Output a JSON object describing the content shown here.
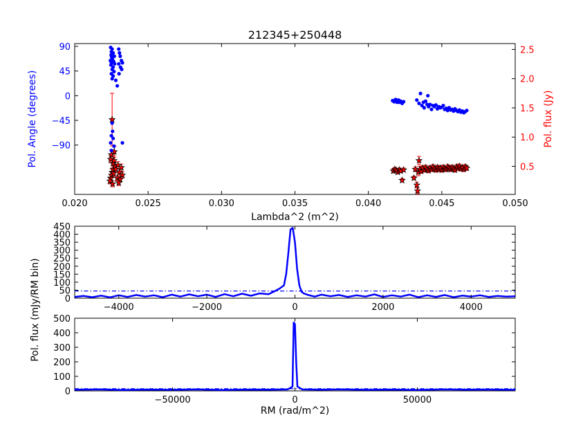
{
  "colors": {
    "angle": "#0000ff",
    "flux": "#ff0000",
    "marker_edge": "#000000",
    "rm_line": "#0000ff"
  },
  "chart_data": [
    {
      "type": "scatter",
      "title": "212345+250448",
      "xlabel": "Lambda^2 (m^2)",
      "ylabel_left": "Pol. Angle (degrees)",
      "ylabel_right": "Pol. flux (Jy)",
      "xlim": [
        0.02,
        0.05
      ],
      "ylim_left": [
        -180,
        95
      ],
      "ylim_right": [
        0.02,
        2.6
      ],
      "xticks": [
        "0.020",
        "0.025",
        "0.030",
        "0.035",
        "0.040",
        "0.045",
        "0.050"
      ],
      "xtick_values": [
        0.02,
        0.025,
        0.03,
        0.035,
        0.04,
        0.045,
        0.05
      ],
      "yticks_left": [
        "90",
        "45",
        "0",
        "−45",
        "−90"
      ],
      "ytick_values_left": [
        90,
        45,
        0,
        -45,
        -90
      ],
      "yticks_right": [
        "0.5",
        "1.0",
        "1.5",
        "2.0",
        "2.5"
      ],
      "ytick_values_right": [
        0.5,
        1.0,
        1.5,
        2.0,
        2.5
      ],
      "series": [
        {
          "points": [
            [
              0.02245,
              88
            ],
            [
              0.02255,
              85
            ],
            [
              0.0225,
              80
            ],
            [
              0.02262,
              78
            ],
            [
              0.02248,
              74
            ],
            [
              0.0227,
              72
            ],
            [
              0.02252,
              70
            ],
            [
              0.02258,
              66
            ],
            [
              0.02243,
              64
            ],
            [
              0.02266,
              62
            ],
            [
              0.0225,
              60
            ],
            [
              0.02272,
              58
            ],
            [
              0.02247,
              56
            ],
            [
              0.02262,
              52
            ],
            [
              0.02255,
              48
            ],
            [
              0.02268,
              44
            ],
            [
              0.0225,
              40
            ],
            [
              0.02262,
              36
            ],
            [
              0.02255,
              31
            ],
            [
              0.0228,
              28
            ],
            [
              0.0229,
              18
            ],
            [
              0.023,
              85
            ],
            [
              0.02305,
              78
            ],
            [
              0.0231,
              72
            ],
            [
              0.02318,
              64
            ],
            [
              0.02325,
              60
            ],
            [
              0.023,
              58
            ],
            [
              0.02312,
              52
            ],
            [
              0.0232,
              48
            ],
            [
              0.02302,
              40
            ],
            [
              0.02255,
              -50
            ],
            [
              0.02258,
              -65
            ],
            [
              0.0225,
              -73
            ],
            [
              0.02262,
              -78
            ],
            [
              0.02245,
              -86
            ],
            [
              0.02268,
              -92
            ],
            [
              0.0225,
              -100
            ],
            [
              0.02325,
              -86
            ],
            [
              0.04165,
              -9
            ],
            [
              0.04175,
              -11
            ],
            [
              0.04185,
              -7
            ],
            [
              0.04195,
              -12
            ],
            [
              0.04205,
              -8
            ],
            [
              0.0421,
              -12
            ],
            [
              0.0422,
              -10
            ],
            [
              0.0423,
              -14
            ],
            [
              0.0424,
              -11
            ],
            [
              0.0433,
              -8
            ],
            [
              0.04345,
              -14
            ],
            [
              0.04355,
              4
            ],
            [
              0.04365,
              -18
            ],
            [
              0.04375,
              -12
            ],
            [
              0.0438,
              -22
            ],
            [
              0.0439,
              -10
            ],
            [
              0.044,
              -16
            ],
            [
              0.04405,
              0
            ],
            [
              0.0441,
              -20
            ],
            [
              0.0442,
              -16
            ],
            [
              0.0443,
              -25
            ],
            [
              0.0444,
              -18
            ],
            [
              0.0445,
              -20
            ],
            [
              0.0446,
              -17
            ],
            [
              0.0447,
              -24
            ],
            [
              0.0448,
              -20
            ],
            [
              0.0449,
              -22
            ],
            [
              0.045,
              -21
            ],
            [
              0.0451,
              -18
            ],
            [
              0.0452,
              -25
            ],
            [
              0.0453,
              -23
            ],
            [
              0.0454,
              -27
            ],
            [
              0.0455,
              -22
            ],
            [
              0.0456,
              -26
            ],
            [
              0.0457,
              -25
            ],
            [
              0.0458,
              -28
            ],
            [
              0.0459,
              -24
            ],
            [
              0.046,
              -27
            ],
            [
              0.0461,
              -29
            ],
            [
              0.0462,
              -26
            ],
            [
              0.0463,
              -30
            ],
            [
              0.0464,
              -28
            ],
            [
              0.0465,
              -31
            ],
            [
              0.0466,
              -29
            ],
            [
              0.0467,
              -27
            ]
          ]
        },
        {
          "points": [
            [
              0.02255,
              0.4,
              0.05
            ],
            [
              0.0226,
              0.55,
              0.07
            ],
            [
              0.02245,
              0.3,
              0.05
            ],
            [
              0.0225,
              0.7,
              0.08
            ],
            [
              0.02262,
              0.45,
              0.06
            ],
            [
              0.0224,
              0.25,
              0.05
            ],
            [
              0.02268,
              0.6,
              0.08
            ],
            [
              0.02252,
              0.35,
              0.05
            ],
            [
              0.02275,
              0.5,
              0.07
            ],
            [
              0.02258,
              0.2,
              0.05
            ],
            [
              0.02245,
              0.62,
              0.06
            ],
            [
              0.02265,
              0.38,
              0.05
            ],
            [
              0.0228,
              0.45,
              0.06
            ],
            [
              0.0229,
              0.3,
              0.05
            ],
            [
              0.02295,
              0.52,
              0.06
            ],
            [
              0.02305,
              0.4,
              0.05
            ],
            [
              0.0231,
              0.28,
              0.05
            ],
            [
              0.02318,
              0.48,
              0.06
            ],
            [
              0.02325,
              0.35,
              0.05
            ],
            [
              0.023,
              0.22,
              0.05
            ],
            [
              0.0227,
              0.75,
              0.1
            ],
            [
              0.02255,
              1.3,
              0.45
            ],
            [
              0.0417,
              0.42,
              0.03
            ],
            [
              0.0418,
              0.45,
              0.03
            ],
            [
              0.0419,
              0.43,
              0.03
            ],
            [
              0.042,
              0.4,
              0.03
            ],
            [
              0.0421,
              0.44,
              0.03
            ],
            [
              0.0422,
              0.42,
              0.03
            ],
            [
              0.0423,
              0.26,
              0.03
            ],
            [
              0.0424,
              0.44,
              0.03
            ],
            [
              0.0431,
              0.3,
              0.03
            ],
            [
              0.0432,
              0.45,
              0.04
            ],
            [
              0.0433,
              0.18,
              0.05
            ],
            [
              0.04335,
              0.08,
              0.05
            ],
            [
              0.0434,
              0.4,
              0.06
            ],
            [
              0.04345,
              0.6,
              0.07
            ],
            [
              0.0435,
              0.45,
              0.05
            ],
            [
              0.0436,
              0.42,
              0.04
            ],
            [
              0.0437,
              0.47,
              0.04
            ],
            [
              0.0438,
              0.44,
              0.04
            ],
            [
              0.0439,
              0.48,
              0.04
            ],
            [
              0.044,
              0.45,
              0.04
            ],
            [
              0.0441,
              0.43,
              0.04
            ],
            [
              0.0442,
              0.47,
              0.04
            ],
            [
              0.0443,
              0.45,
              0.04
            ],
            [
              0.0444,
              0.49,
              0.04
            ],
            [
              0.0445,
              0.46,
              0.04
            ],
            [
              0.0446,
              0.44,
              0.04
            ],
            [
              0.0447,
              0.48,
              0.04
            ],
            [
              0.0448,
              0.45,
              0.04
            ],
            [
              0.0449,
              0.47,
              0.04
            ],
            [
              0.045,
              0.44,
              0.04
            ],
            [
              0.0451,
              0.48,
              0.04
            ],
            [
              0.0452,
              0.46,
              0.04
            ],
            [
              0.0453,
              0.45,
              0.04
            ],
            [
              0.0454,
              0.49,
              0.04
            ],
            [
              0.0455,
              0.47,
              0.04
            ],
            [
              0.0456,
              0.45,
              0.04
            ],
            [
              0.0457,
              0.48,
              0.04
            ],
            [
              0.0458,
              0.46,
              0.04
            ],
            [
              0.0459,
              0.44,
              0.04
            ],
            [
              0.046,
              0.49,
              0.04
            ],
            [
              0.0461,
              0.47,
              0.04
            ],
            [
              0.0462,
              0.5,
              0.04
            ],
            [
              0.0463,
              0.46,
              0.04
            ],
            [
              0.0464,
              0.48,
              0.04
            ],
            [
              0.0465,
              0.45,
              0.04
            ],
            [
              0.0466,
              0.49,
              0.04
            ],
            [
              0.0467,
              0.47,
              0.04
            ]
          ]
        }
      ]
    },
    {
      "type": "line",
      "xlim": [
        -5000,
        5000
      ],
      "ylim": [
        0,
        450
      ],
      "xticks": [
        "−4000",
        "−2000",
        "0",
        "2000",
        "4000"
      ],
      "xtick_values": [
        -4000,
        -2000,
        0,
        2000,
        4000
      ],
      "yticks": [
        "0",
        "50",
        "100",
        "150",
        "200",
        "250",
        "300",
        "350",
        "400",
        "450"
      ],
      "ytick_values": [
        0,
        50,
        100,
        150,
        200,
        250,
        300,
        350,
        400,
        450
      ],
      "threshold": 45,
      "x": [
        -5000,
        -4800,
        -4600,
        -4400,
        -4200,
        -4000,
        -3800,
        -3600,
        -3400,
        -3200,
        -3000,
        -2800,
        -2600,
        -2400,
        -2200,
        -2000,
        -1800,
        -1600,
        -1400,
        -1200,
        -1000,
        -800,
        -600,
        -450,
        -350,
        -250,
        -200,
        -150,
        -100,
        -50,
        0,
        50,
        100,
        150,
        200,
        300,
        450,
        600,
        800,
        1000,
        1200,
        1400,
        1600,
        1800,
        2000,
        2200,
        2400,
        2600,
        2800,
        3000,
        3200,
        3400,
        3600,
        3800,
        4000,
        4200,
        4400,
        4600,
        4800,
        5000
      ],
      "y": [
        8,
        14,
        6,
        16,
        5,
        18,
        8,
        20,
        10,
        18,
        6,
        22,
        10,
        24,
        12,
        22,
        8,
        25,
        12,
        28,
        15,
        30,
        25,
        45,
        60,
        80,
        150,
        280,
        430,
        440,
        350,
        180,
        80,
        40,
        30,
        20,
        10,
        22,
        12,
        20,
        8,
        18,
        10,
        24,
        8,
        18,
        10,
        22,
        6,
        18,
        8,
        20,
        6,
        16,
        10,
        18,
        8,
        14,
        10,
        12
      ]
    },
    {
      "type": "line",
      "xlabel": "RM (rad/m^2)",
      "ylabel": "Pol. flux (mJy/RM bin)",
      "xlim": [
        -90000,
        90000
      ],
      "ylim": [
        0,
        500
      ],
      "xticks": [
        "−50000",
        "0",
        "50000"
      ],
      "xtick_values": [
        -50000,
        0,
        50000
      ],
      "yticks": [
        "0",
        "100",
        "200",
        "300",
        "400",
        "500"
      ],
      "ytick_values": [
        0,
        100,
        200,
        300,
        400,
        500
      ],
      "threshold": 15,
      "x": [
        -90000,
        -80000,
        -70000,
        -60000,
        -50000,
        -40000,
        -30000,
        -20000,
        -10000,
        -3000,
        -1000,
        -500,
        0,
        500,
        1000,
        3000,
        10000,
        20000,
        30000,
        40000,
        50000,
        60000,
        70000,
        80000,
        90000
      ],
      "y": [
        8,
        10,
        6,
        9,
        7,
        10,
        6,
        9,
        8,
        10,
        30,
        470,
        460,
        200,
        30,
        10,
        8,
        10,
        7,
        9,
        6,
        10,
        8,
        9,
        7
      ]
    }
  ]
}
